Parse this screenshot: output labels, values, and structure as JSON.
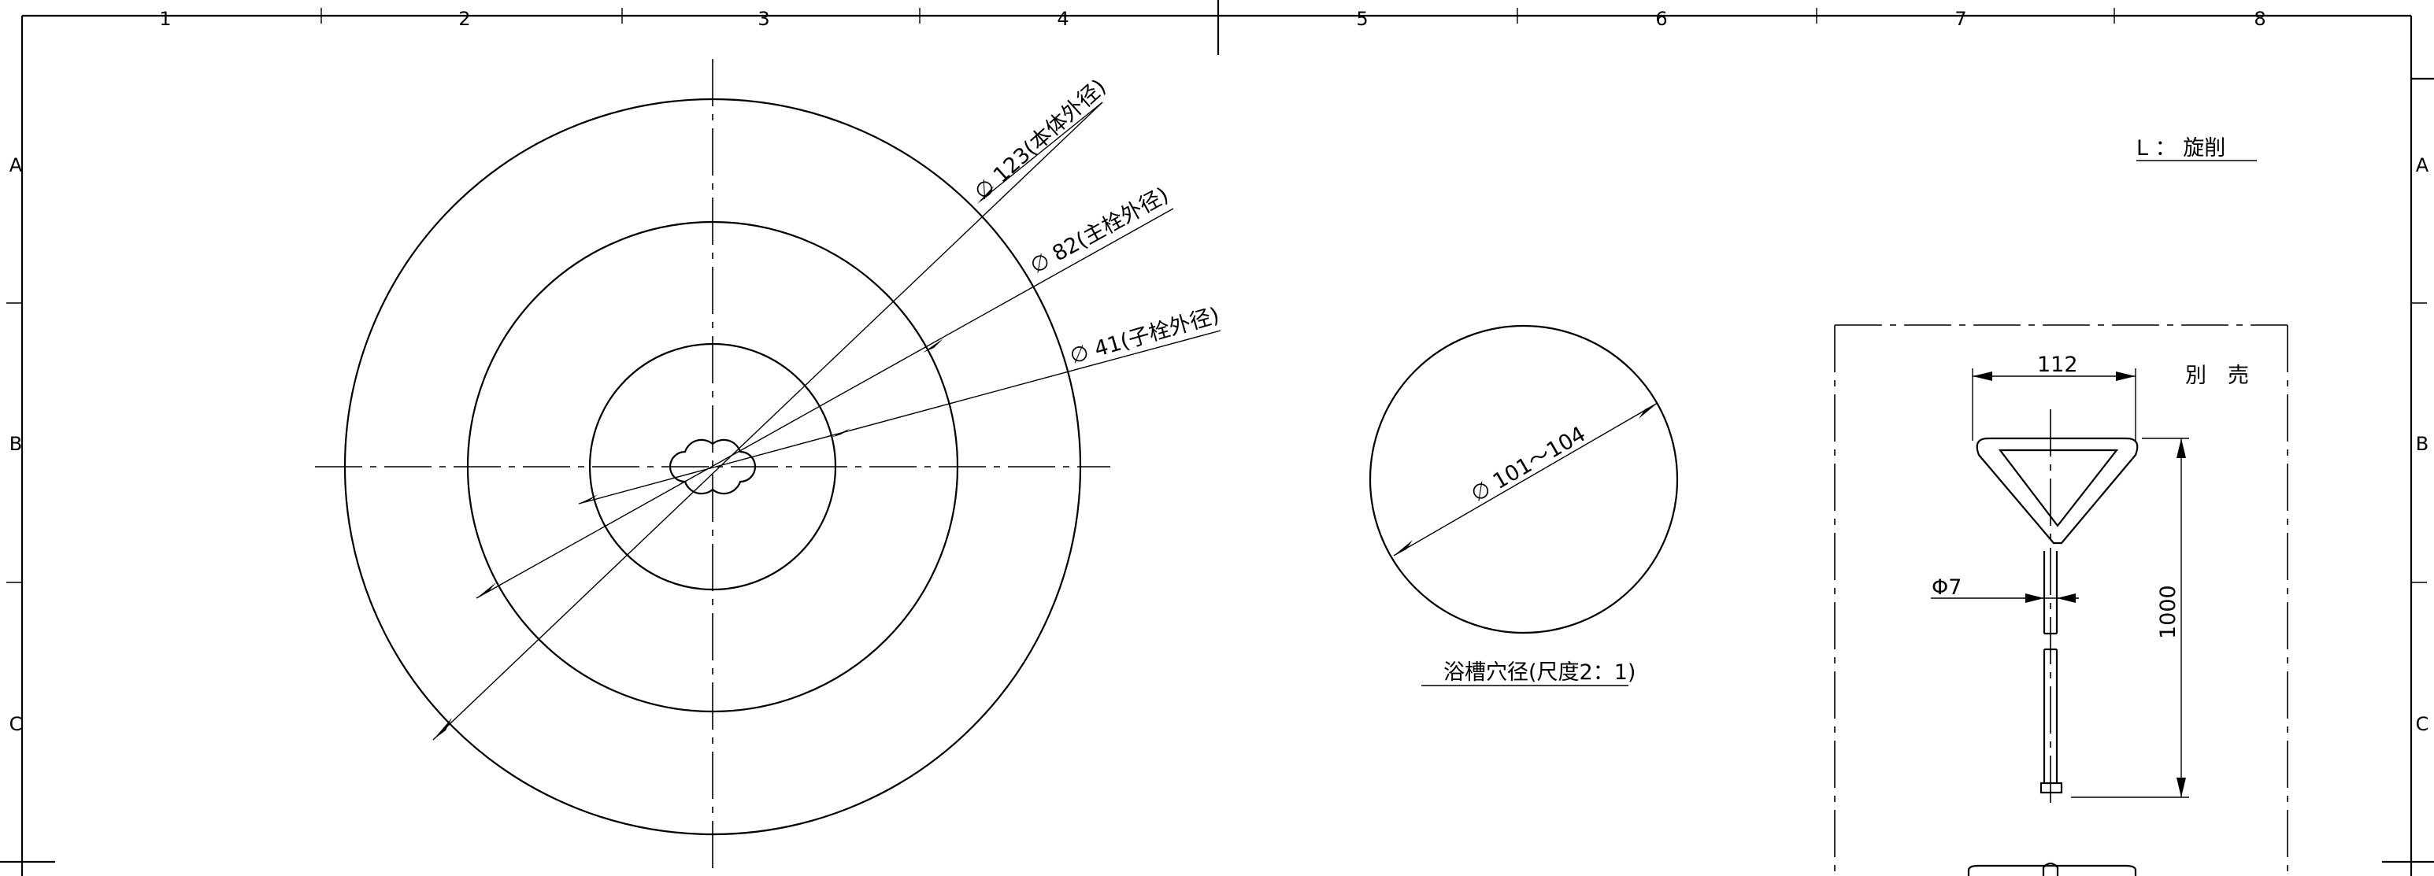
{
  "frame": {
    "columns": [
      "1",
      "2",
      "3",
      "4",
      "5",
      "6",
      "7",
      "8"
    ],
    "rows": [
      "A",
      "B",
      "C"
    ]
  },
  "legend_note": "L ： 旋削",
  "main_view": {
    "dim_body": "∅ 123(本体外径)",
    "dim_main_plug": "∅ 82(主栓外径)",
    "dim_child_plug": "∅ 41(子栓外径)"
  },
  "hole_view": {
    "dim": "∅ 101～104",
    "caption": "浴槽穴径(尺度2：1)"
  },
  "tool_view": {
    "label": "別　売",
    "dim_width": "112",
    "dim_length": "1000",
    "dim_rod": "Φ7"
  }
}
